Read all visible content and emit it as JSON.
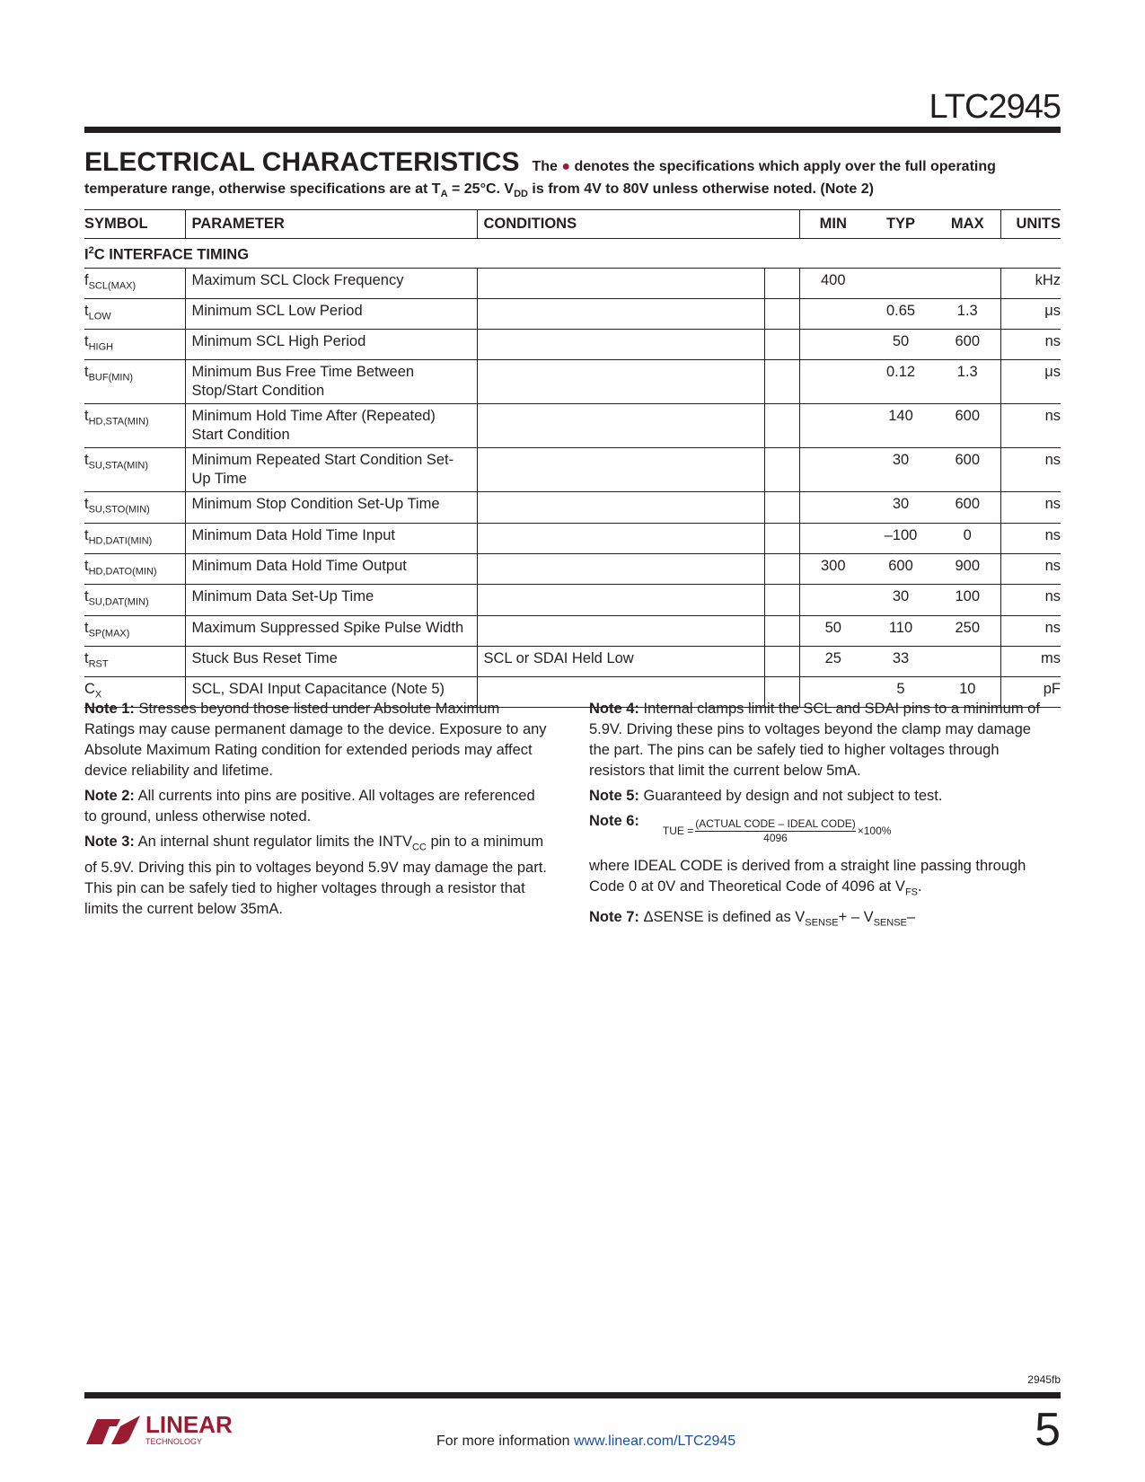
{
  "header": {
    "part_number": "LTC2945",
    "section_title": "ELECTRICAL CHARACTERISTICS",
    "intro_a": "The",
    "intro_b": "denotes the specifications which apply over the full operating",
    "intro_c": "temperature range, otherwise specifications are at T",
    "intro_c_sub": "A",
    "intro_d": " = 25°C. V",
    "intro_d_sub": "DD",
    "intro_e": " is from 4V to 80V unless otherwise noted. (Note 2)"
  },
  "table": {
    "columns": [
      "SYMBOL",
      "PARAMETER",
      "CONDITIONS",
      "MIN",
      "TYP",
      "MAX",
      "UNITS"
    ],
    "section": "C INTERFACE TIMING",
    "section_prefix": "I",
    "section_sup": "2",
    "rows": [
      {
        "sym": "f",
        "sub": "SCL(MAX)",
        "param": "Maximum SCL Clock Frequency",
        "cond": "",
        "min": "400",
        "typ": "",
        "max": "",
        "units": "kHz"
      },
      {
        "sym": "t",
        "sub": "LOW",
        "param": "Minimum SCL Low Period",
        "cond": "",
        "min": "",
        "typ": "0.65",
        "max": "1.3",
        "units": "μs"
      },
      {
        "sym": "t",
        "sub": "HIGH",
        "param": "Minimum SCL High Period",
        "cond": "",
        "min": "",
        "typ": "50",
        "max": "600",
        "units": "ns"
      },
      {
        "sym": "t",
        "sub": "BUF(MIN)",
        "param": "Minimum Bus Free Time Between Stop/Start Condition",
        "cond": "",
        "min": "",
        "typ": "0.12",
        "max": "1.3",
        "units": "μs"
      },
      {
        "sym": "t",
        "sub": "HD,STA(MIN)",
        "param": "Minimum Hold Time After (Repeated) Start Condition",
        "cond": "",
        "min": "",
        "typ": "140",
        "max": "600",
        "units": "ns"
      },
      {
        "sym": "t",
        "sub": "SU,STA(MIN)",
        "param": "Minimum Repeated Start Condition Set-Up Time",
        "cond": "",
        "min": "",
        "typ": "30",
        "max": "600",
        "units": "ns"
      },
      {
        "sym": "t",
        "sub": "SU,STO(MIN)",
        "param": "Minimum Stop Condition Set-Up Time",
        "cond": "",
        "min": "",
        "typ": "30",
        "max": "600",
        "units": "ns"
      },
      {
        "sym": "t",
        "sub": "HD,DATI(MIN)",
        "param": "Minimum Data Hold Time Input",
        "cond": "",
        "min": "",
        "typ": "–100",
        "max": "0",
        "units": "ns"
      },
      {
        "sym": "t",
        "sub": "HD,DATO(MIN)",
        "param": "Minimum Data Hold Time Output",
        "cond": "",
        "min": "300",
        "typ": "600",
        "max": "900",
        "units": "ns"
      },
      {
        "sym": "t",
        "sub": "SU,DAT(MIN)",
        "param": "Minimum Data Set-Up Time",
        "cond": "",
        "min": "",
        "typ": "30",
        "max": "100",
        "units": "ns"
      },
      {
        "sym": "t",
        "sub": "SP(MAX)",
        "param": "Maximum Suppressed Spike Pulse Width",
        "cond": "",
        "min": "50",
        "typ": "110",
        "max": "250",
        "units": "ns"
      },
      {
        "sym": "t",
        "sub": "RST",
        "param": "Stuck Bus Reset Time",
        "cond": "SCL or SDAI Held Low",
        "min": "25",
        "typ": "33",
        "max": "",
        "units": "ms"
      },
      {
        "sym": "C",
        "sub": "X",
        "param": "SCL, SDAI Input Capacitance (Note 5)",
        "cond": "",
        "min": "",
        "typ": "5",
        "max": "10",
        "units": "pF"
      }
    ]
  },
  "notes": {
    "n1_label": "Note 1:",
    "n1": " Stresses beyond those listed under Absolute Maximum Ratings may cause permanent damage to the device. Exposure to any Absolute Maximum Rating condition for extended periods may affect device reliability and lifetime.",
    "n2_label": "Note 2:",
    "n2": " All currents into pins are positive. All voltages are referenced to ground, unless otherwise noted.",
    "n3_label": "Note 3:",
    "n3a": " An internal shunt regulator limits the INTV",
    "n3_sub": "CC",
    "n3b": " pin to a minimum of 5.9V. Driving this pin to voltages beyond 5.9V may damage the part. This pin can be safely tied to higher voltages through a resistor that limits the current below 35mA.",
    "n4_label": "Note 4:",
    "n4": " Internal clamps limit the SCL and SDAI pins to a minimum of 5.9V. Driving these pins to voltages beyond the clamp may damage the part. The pins can be safely tied to higher voltages through resistors that limit the current below 5mA.",
    "n5_label": "Note 5:",
    "n5": " Guaranteed by design and not subject to test.",
    "n6_label": "Note 6:",
    "n6_lhs": "TUE =",
    "n6_num": "(ACTUAL CODE – IDEAL CODE)",
    "n6_den": "4096",
    "n6_rhs": "×100%",
    "n6a": "where IDEAL CODE is derived from a straight line passing through Code 0 at 0V and Theoretical Code of 4096 at V",
    "n6_sub": "FS",
    "n6b": ".",
    "n7_label": "Note 7:",
    "n7a": " ΔSENSE is defined as V",
    "n7_sub1": "SENSE",
    "n7b": "+ – V",
    "n7_sub2": "SENSE",
    "n7c": "–"
  },
  "footer": {
    "doc_code": "2945fb",
    "more_info": "For more information ",
    "link": "www.linear.com/LTC2945",
    "page": "5",
    "logo_text": "LINEAR",
    "logo_sub": "TECHNOLOGY",
    "accent": "#9b1b30",
    "link_color": "#1b4fa0"
  }
}
